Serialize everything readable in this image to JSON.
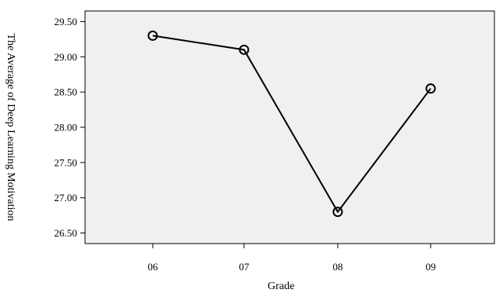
{
  "chart_data": {
    "type": "line",
    "title": "",
    "xlabel": "Grade",
    "ylabel": "The Average of Deep Learning Motivation",
    "categories": [
      "06",
      "07",
      "08",
      "09"
    ],
    "series": [
      {
        "values": [
          29.3,
          29.1,
          26.8,
          28.55
        ]
      }
    ],
    "ylim": [
      26.35,
      29.65
    ],
    "yticks": [
      26.5,
      27.0,
      27.5,
      28.0,
      28.5,
      29.0,
      29.5
    ],
    "ytick_labels": [
      "26.50",
      "27.00",
      "27.50",
      "28.00",
      "28.50",
      "29.00",
      "29.50"
    ],
    "marker": "open-circle",
    "grid": false,
    "legend": "none",
    "colors": {
      "plot_background": "#f0f0f0",
      "line": "#000000",
      "page_background": "#ffffff"
    }
  }
}
